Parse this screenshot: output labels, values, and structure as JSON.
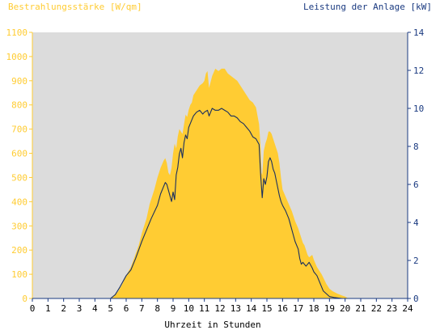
{
  "chart_data": {
    "type": "area",
    "left_axis_title": "Bestrahlungsstärke [W/qm]",
    "right_axis_title": "Leistung der Anlage [kW]",
    "xlabel": "Uhrzeit in Stunden",
    "x_ticks": [
      "0",
      "1",
      "2",
      "3",
      "4",
      "5",
      "6",
      "7",
      "8",
      "9",
      "10",
      "11",
      "12",
      "13",
      "14",
      "15",
      "16",
      "17",
      "18",
      "19",
      "20",
      "21",
      "22",
      "23",
      "24"
    ],
    "y_left_ticks": [
      "0",
      "100",
      "200",
      "300",
      "400",
      "500",
      "600",
      "700",
      "800",
      "900",
      "1000",
      "1100"
    ],
    "y_right_ticks": [
      "0",
      "2",
      "4",
      "6",
      "8",
      "10",
      "12",
      "14"
    ],
    "xlim": [
      0,
      24
    ],
    "ylim_left": [
      0,
      1100
    ],
    "ylim_right": [
      0,
      14
    ],
    "grid": false,
    "colors": {
      "irradiance_fill": "#ffcc33",
      "power_line": "#1a2f5e",
      "plot_background": "#dcdcdc",
      "left_axis_color": "#ffcc33",
      "right_axis_color": "#1a3a80",
      "text_dark": "#000000"
    },
    "series": [
      {
        "name": "Bestrahlungsstärke",
        "axis": "left",
        "style": "area",
        "x": [
          0,
          5.0,
          5.2,
          5.5,
          5.8,
          6.0,
          6.3,
          6.5,
          6.8,
          7.0,
          7.3,
          7.5,
          7.8,
          8.0,
          8.2,
          8.4,
          8.5,
          8.6,
          8.7,
          8.8,
          8.9,
          9.0,
          9.1,
          9.2,
          9.3,
          9.4,
          9.5,
          9.6,
          9.7,
          9.8,
          9.9,
          10.0,
          10.1,
          10.2,
          10.3,
          10.5,
          10.7,
          10.9,
          11.0,
          11.1,
          11.2,
          11.3,
          11.5,
          11.7,
          11.9,
          12.1,
          12.3,
          12.5,
          12.7,
          12.9,
          13.1,
          13.3,
          13.5,
          13.7,
          13.9,
          14.1,
          14.3,
          14.5,
          14.6,
          14.65,
          14.7,
          14.75,
          14.8,
          14.9,
          15.0,
          15.1,
          15.2,
          15.3,
          15.4,
          15.5,
          15.6,
          15.7,
          15.8,
          15.9,
          16.0,
          16.2,
          16.4,
          16.6,
          16.8,
          17.0,
          17.2,
          17.3,
          17.4,
          17.5,
          17.6,
          17.7,
          17.8,
          17.9,
          18.0,
          18.1,
          18.2,
          18.3,
          18.5,
          18.8,
          19.0,
          19.2,
          19.5,
          19.8,
          20.0,
          20.2,
          24
        ],
        "values": [
          0,
          0,
          8,
          30,
          65,
          95,
          130,
          165,
          220,
          270,
          330,
          390,
          450,
          500,
          540,
          570,
          580,
          560,
          520,
          510,
          540,
          600,
          640,
          620,
          670,
          700,
          690,
          680,
          720,
          760,
          750,
          780,
          800,
          810,
          840,
          860,
          880,
          890,
          900,
          930,
          940,
          870,
          920,
          950,
          940,
          950,
          950,
          930,
          920,
          910,
          900,
          880,
          860,
          840,
          820,
          810,
          790,
          720,
          620,
          520,
          510,
          560,
          610,
          640,
          660,
          690,
          690,
          680,
          660,
          640,
          620,
          600,
          560,
          500,
          450,
          420,
          390,
          360,
          320,
          290,
          250,
          230,
          220,
          200,
          180,
          170,
          175,
          180,
          160,
          145,
          130,
          120,
          100,
          60,
          40,
          30,
          20,
          12,
          8,
          0,
          0
        ]
      },
      {
        "name": "Leistung der Anlage",
        "axis": "right",
        "style": "line",
        "x": [
          0,
          5.0,
          5.3,
          5.6,
          6.0,
          6.3,
          6.6,
          7.0,
          7.3,
          7.6,
          8.0,
          8.2,
          8.4,
          8.5,
          8.6,
          8.7,
          8.8,
          8.9,
          9.0,
          9.1,
          9.2,
          9.3,
          9.4,
          9.5,
          9.6,
          9.7,
          9.8,
          9.9,
          10.0,
          10.1,
          10.2,
          10.3,
          10.5,
          10.7,
          10.9,
          11.0,
          11.2,
          11.3,
          11.5,
          11.7,
          11.9,
          12.1,
          12.3,
          12.5,
          12.7,
          12.9,
          13.1,
          13.3,
          13.5,
          13.7,
          13.9,
          14.1,
          14.3,
          14.5,
          14.6,
          14.7,
          14.8,
          14.9,
          15.0,
          15.1,
          15.2,
          15.3,
          15.4,
          15.5,
          15.6,
          15.7,
          15.8,
          15.9,
          16.0,
          16.2,
          16.4,
          16.6,
          16.8,
          17.0,
          17.1,
          17.2,
          17.3,
          17.5,
          17.7,
          17.9,
          18.0,
          18.2,
          18.4,
          18.6,
          18.8,
          19.0,
          19.3,
          19.6,
          19.8,
          20.0,
          24
        ],
        "values": [
          0,
          0,
          0.2,
          0.6,
          1.2,
          1.5,
          2.1,
          3.0,
          3.6,
          4.2,
          4.9,
          5.5,
          5.9,
          6.1,
          6.0,
          5.7,
          5.4,
          5.1,
          5.6,
          5.2,
          6.5,
          6.9,
          7.6,
          7.9,
          7.4,
          8.2,
          8.6,
          8.4,
          9.0,
          9.2,
          9.4,
          9.6,
          9.8,
          9.9,
          9.7,
          9.8,
          9.9,
          9.6,
          10.0,
          9.9,
          9.9,
          10.0,
          9.9,
          9.8,
          9.6,
          9.6,
          9.5,
          9.3,
          9.2,
          9.0,
          8.8,
          8.5,
          8.4,
          8.1,
          6.5,
          5.3,
          6.3,
          6.0,
          6.4,
          7.2,
          7.4,
          7.2,
          6.8,
          6.6,
          6.2,
          5.8,
          5.4,
          5.1,
          4.9,
          4.6,
          4.2,
          3.6,
          3.0,
          2.6,
          2.1,
          1.8,
          1.9,
          1.7,
          1.9,
          1.6,
          1.4,
          1.2,
          0.8,
          0.4,
          0.25,
          0.1,
          0.05,
          0.02,
          0,
          0,
          0
        ]
      }
    ]
  }
}
